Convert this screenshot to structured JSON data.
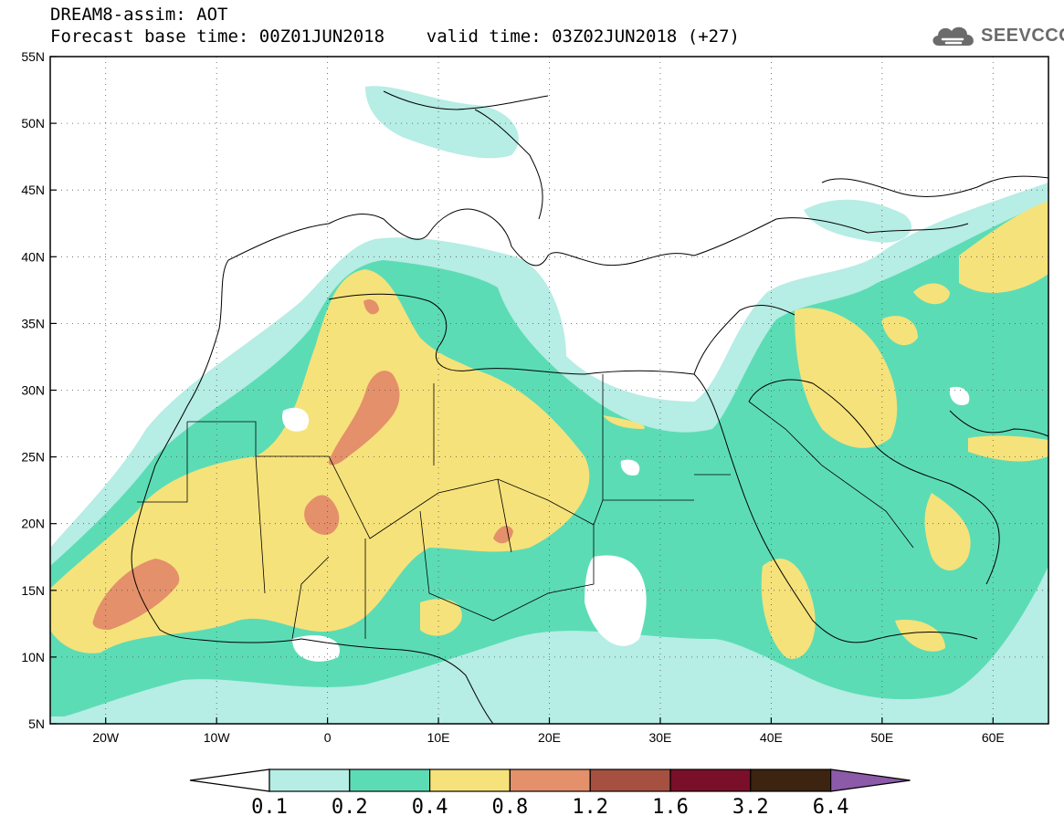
{
  "header": {
    "line1": "DREAM8-assim: AOT",
    "line2": "Forecast base time: 00Z01JUN2018    valid time: 03Z02JUN2018 (+27)"
  },
  "logo": {
    "text": "SEEVCCC",
    "icon": "cloud-icon"
  },
  "map": {
    "lon_range": [
      -25,
      65
    ],
    "lat_range": [
      5,
      55
    ],
    "lat_ticks": [
      "5N",
      "10N",
      "15N",
      "20N",
      "25N",
      "30N",
      "35N",
      "40N",
      "45N",
      "50N",
      "55N"
    ],
    "lon_ticks": [
      "20W",
      "10W",
      "0",
      "10E",
      "20E",
      "30E",
      "40E",
      "50E",
      "60E"
    ],
    "grid": true
  },
  "colorbar": {
    "levels": [
      "0.1",
      "0.2",
      "0.4",
      "0.8",
      "1.2",
      "1.6",
      "3.2",
      "6.4"
    ],
    "colors": [
      "#ffffff",
      "#b6ede5",
      "#5cdcb5",
      "#f6e27a",
      "#e4906a",
      "#a55040",
      "#7a0f2a",
      "#3c2410",
      "#8c5aa8"
    ]
  },
  "colors": {
    "c01": "#b6ede5",
    "c02": "#5cdcb5",
    "c04": "#f6e27a",
    "c08": "#e4906a"
  }
}
